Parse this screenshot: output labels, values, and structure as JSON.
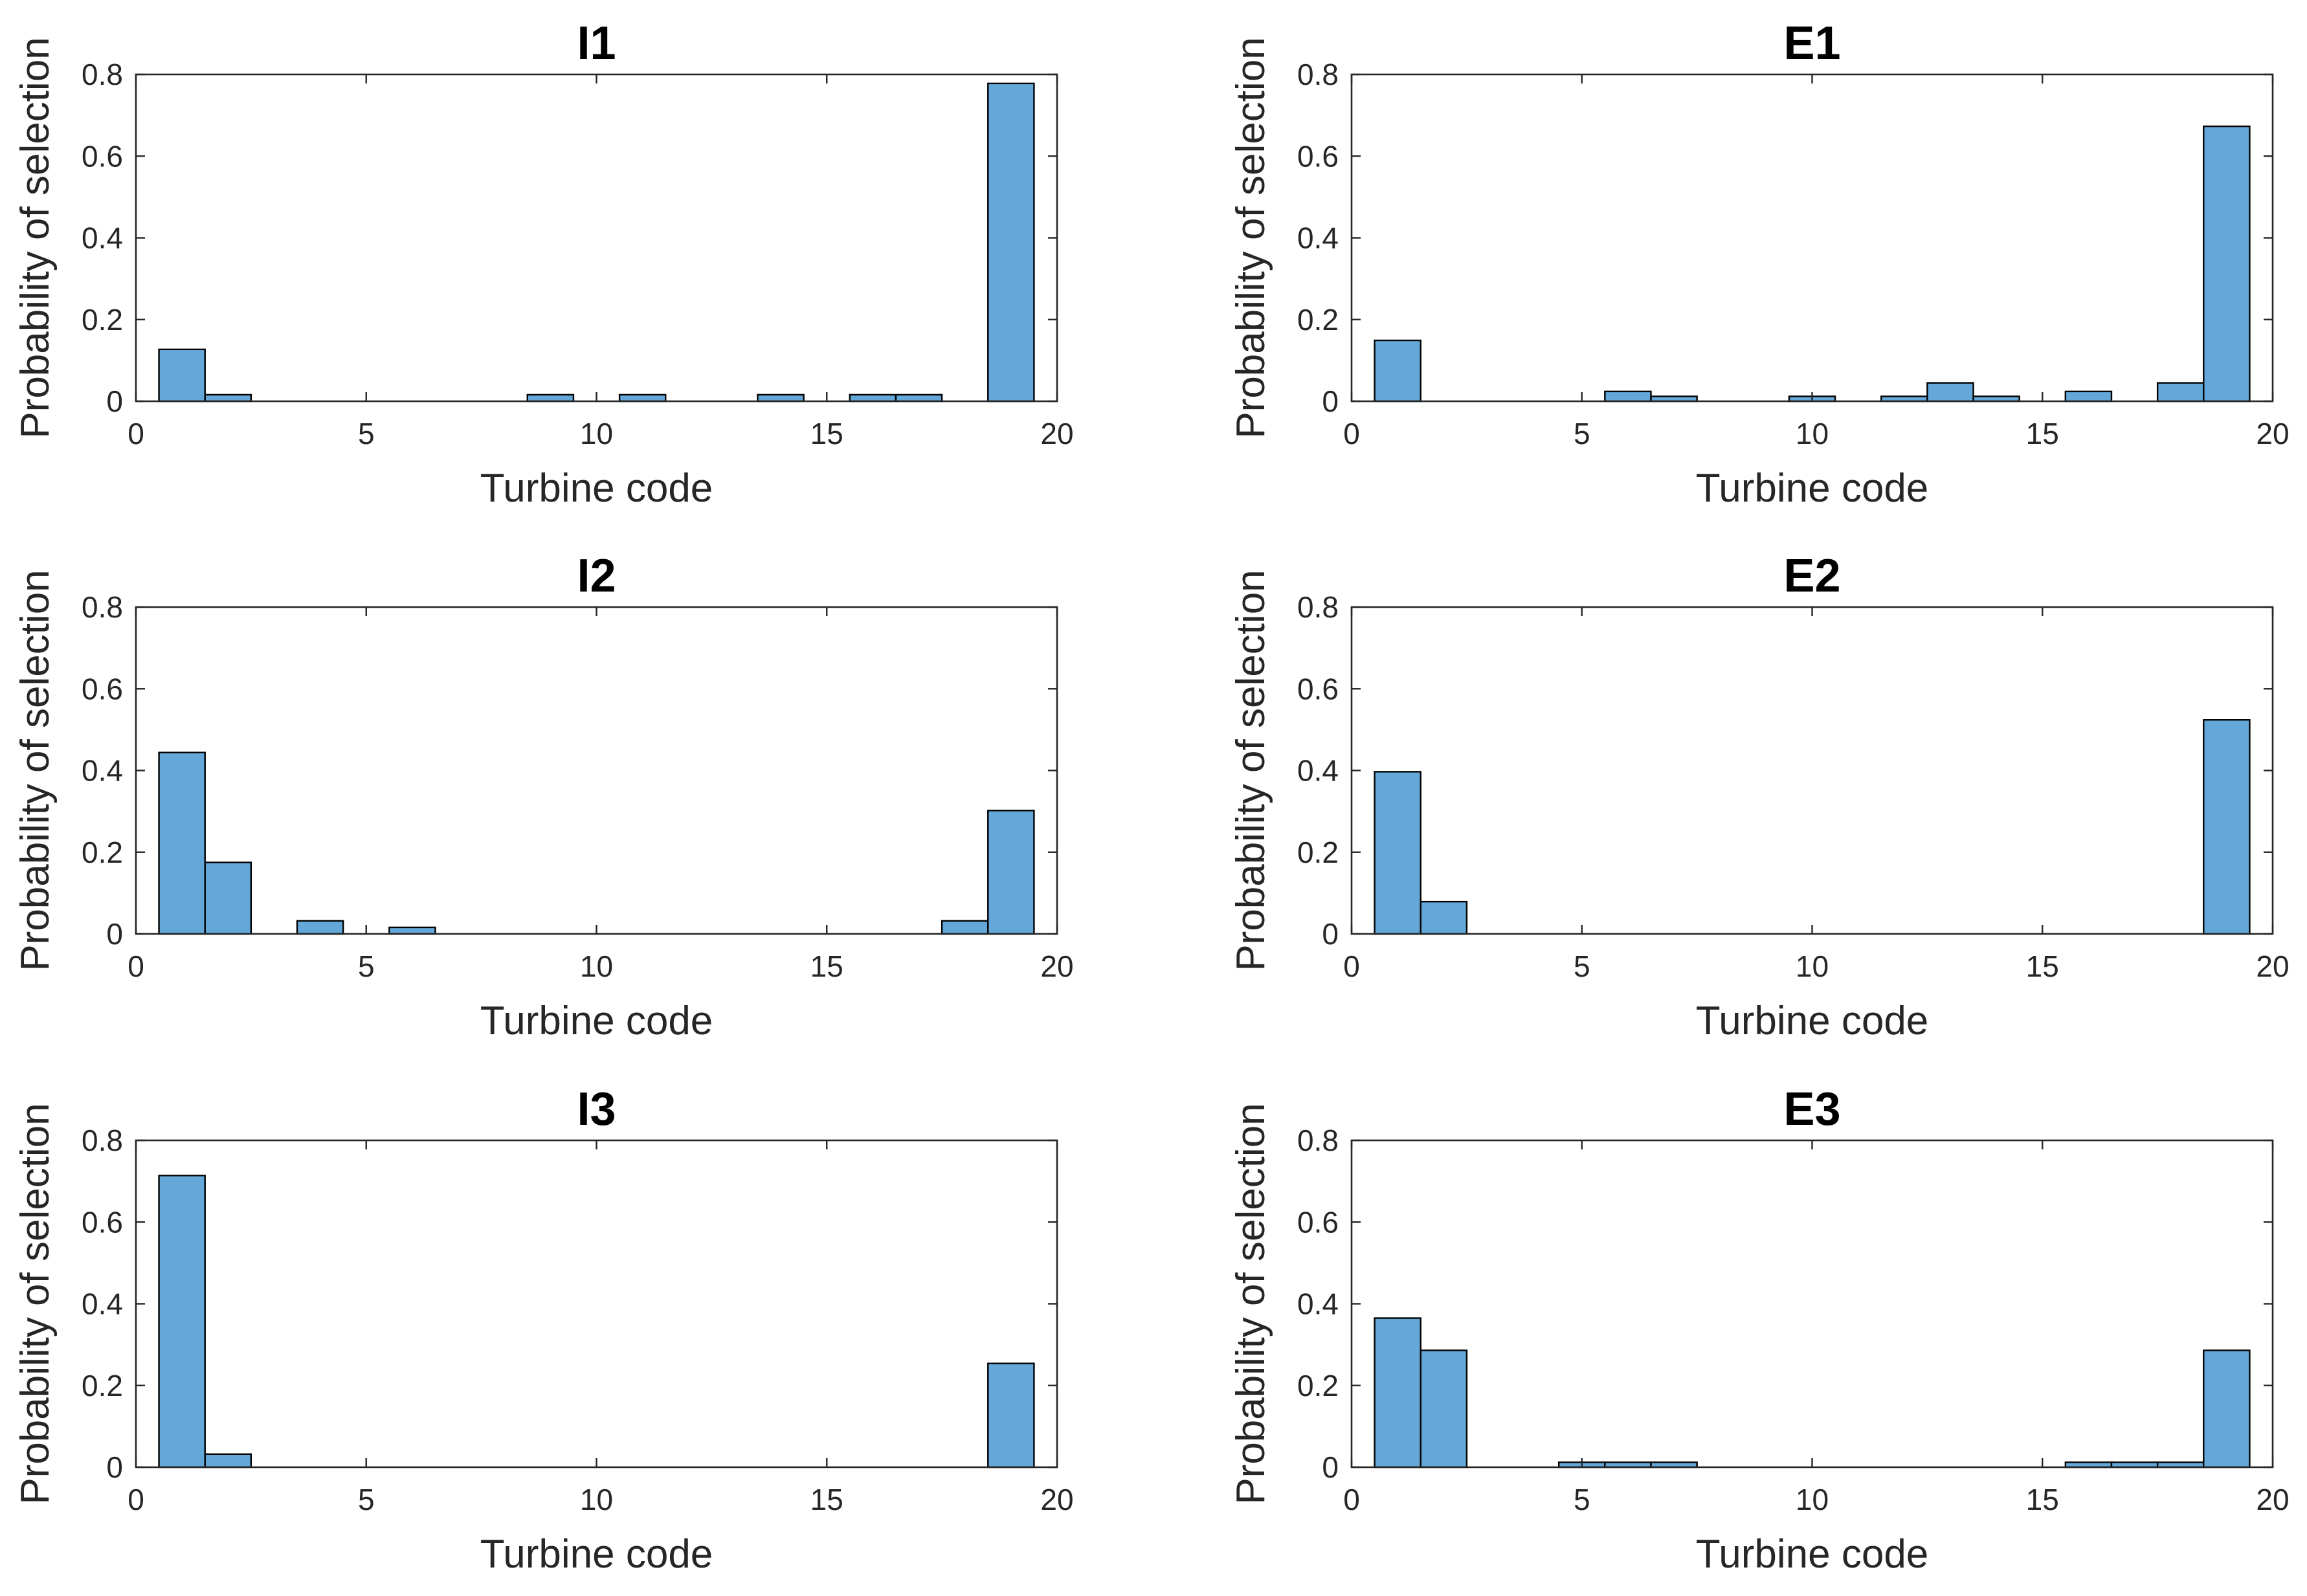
{
  "figure": {
    "bar_color": "#63a8d8",
    "edge_color": "#000000",
    "axis_color": "#262626"
  },
  "chart_data": [
    {
      "type": "bar",
      "title": "I1",
      "xlabel": "Turbine code",
      "ylabel": "Probability of selection",
      "xlim": [
        0,
        20
      ],
      "ylim": [
        0,
        0.8
      ],
      "xticks": [
        "0",
        "5",
        "10",
        "15",
        "20"
      ],
      "yticks": [
        "0",
        "0.2",
        "0.4",
        "0.6",
        "0.8"
      ],
      "bin_width": 1,
      "x": [
        1,
        2,
        9,
        11,
        14,
        16,
        17,
        19
      ],
      "values": [
        0.127,
        0.016,
        0.016,
        0.016,
        0.016,
        0.016,
        0.016,
        0.778
      ]
    },
    {
      "type": "bar",
      "title": "E1",
      "xlabel": "Turbine code",
      "ylabel": "Probability of selection",
      "xlim": [
        0,
        20
      ],
      "ylim": [
        0,
        0.8
      ],
      "xticks": [
        "0",
        "5",
        "10",
        "15",
        "20"
      ],
      "yticks": [
        "0",
        "0.2",
        "0.4",
        "0.6",
        "0.8"
      ],
      "bin_width": 1,
      "x": [
        1,
        6,
        7,
        10,
        12,
        13,
        14,
        16,
        18,
        19
      ],
      "values": [
        0.149,
        0.024,
        0.012,
        0.012,
        0.012,
        0.045,
        0.012,
        0.024,
        0.045,
        0.673
      ]
    },
    {
      "type": "bar",
      "title": "I2",
      "xlabel": "Turbine code",
      "ylabel": "Probability of selection",
      "xlim": [
        0,
        20
      ],
      "ylim": [
        0,
        0.8
      ],
      "xticks": [
        "0",
        "5",
        "10",
        "15",
        "20"
      ],
      "yticks": [
        "0",
        "0.2",
        "0.4",
        "0.6",
        "0.8"
      ],
      "bin_width": 1,
      "x": [
        1,
        2,
        4,
        6,
        18,
        19
      ],
      "values": [
        0.444,
        0.175,
        0.032,
        0.016,
        0.032,
        0.302
      ]
    },
    {
      "type": "bar",
      "title": "E2",
      "xlabel": "Turbine code",
      "ylabel": "Probability of selection",
      "xlim": [
        0,
        20
      ],
      "ylim": [
        0,
        0.8
      ],
      "xticks": [
        "0",
        "5",
        "10",
        "15",
        "20"
      ],
      "yticks": [
        "0",
        "0.2",
        "0.4",
        "0.6",
        "0.8"
      ],
      "bin_width": 1,
      "x": [
        1,
        2,
        19
      ],
      "values": [
        0.397,
        0.079,
        0.524
      ]
    },
    {
      "type": "bar",
      "title": "I3",
      "xlabel": "Turbine code",
      "ylabel": "Probability of selection",
      "xlim": [
        0,
        20
      ],
      "ylim": [
        0,
        0.8
      ],
      "xticks": [
        "0",
        "5",
        "10",
        "15",
        "20"
      ],
      "yticks": [
        "0",
        "0.2",
        "0.4",
        "0.6",
        "0.8"
      ],
      "bin_width": 1,
      "x": [
        1,
        2,
        19
      ],
      "values": [
        0.714,
        0.032,
        0.254
      ]
    },
    {
      "type": "bar",
      "title": "E3",
      "xlabel": "Turbine code",
      "ylabel": "Probability of selection",
      "xlim": [
        0,
        20
      ],
      "ylim": [
        0,
        0.8
      ],
      "xticks": [
        "0",
        "5",
        "10",
        "15",
        "20"
      ],
      "yticks": [
        "0",
        "0.2",
        "0.4",
        "0.6",
        "0.8"
      ],
      "bin_width": 1,
      "x": [
        1,
        2,
        5,
        6,
        7,
        16,
        17,
        18,
        19
      ],
      "values": [
        0.365,
        0.286,
        0.012,
        0.012,
        0.012,
        0.012,
        0.012,
        0.012,
        0.286
      ]
    }
  ]
}
